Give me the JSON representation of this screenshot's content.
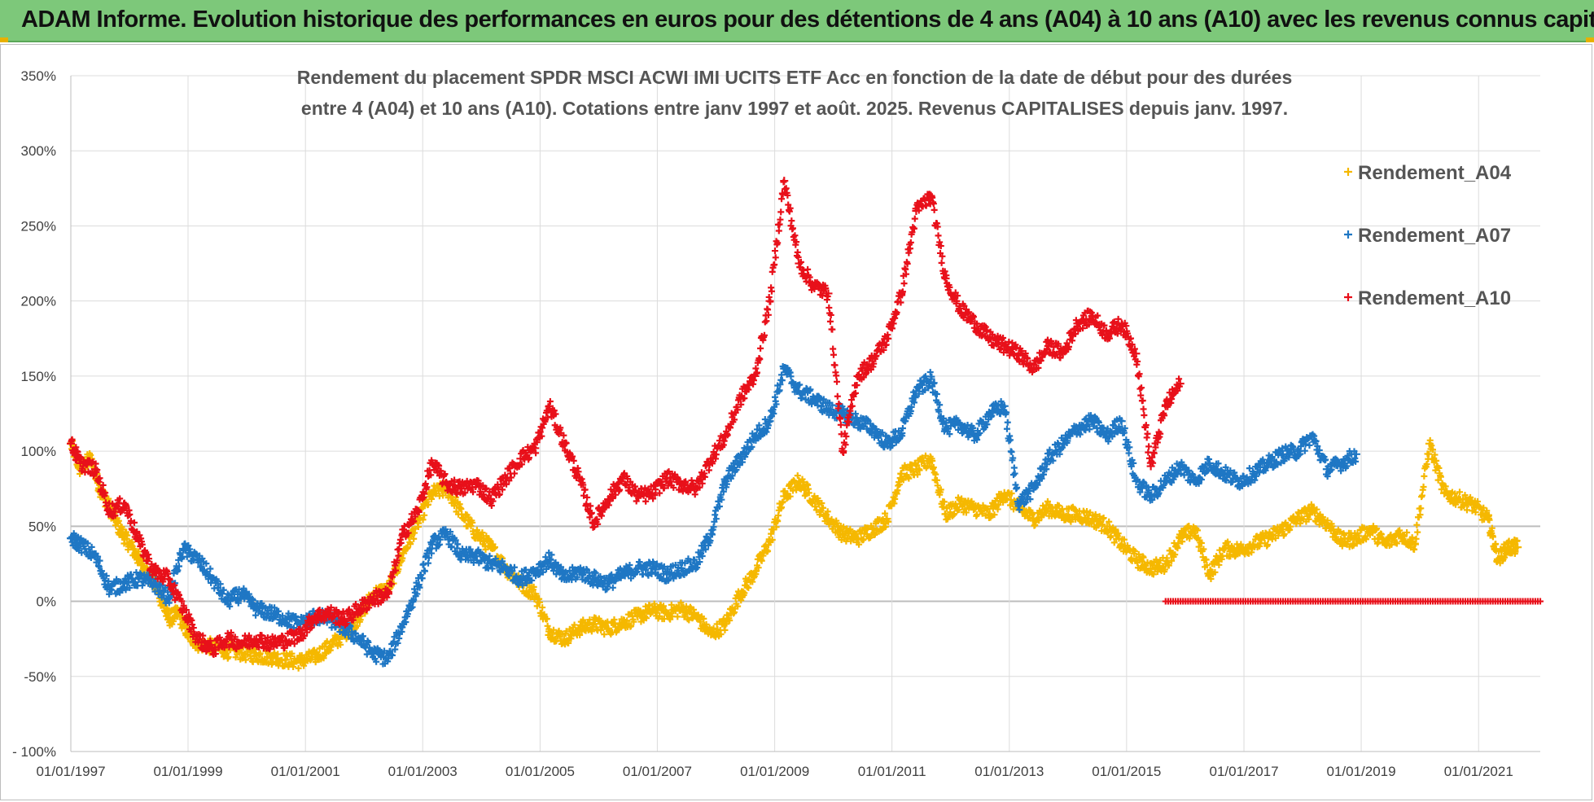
{
  "banner": {
    "title": "ADAM Informe. Evolution historique des performances en euros pour des détentions de 4 ans (A04) à 10 ans (A10) avec les revenus connus capitalisés",
    "background": "#7dc87a"
  },
  "chart_data": {
    "type": "scatter",
    "title_lines": [
      "Rendement du placement SPDR MSCI ACWI IMI UCITS ETF Acc en fonction de la date de début pour des durées",
      "entre 4 (A04) et 10 ans (A10). Cotations entre janv 1997 et août. 2025. Revenus CAPITALISES depuis janv. 1997."
    ],
    "xlabel": "",
    "ylabel": "",
    "xlim": [
      "1997-01-01",
      "2022-01-20"
    ],
    "ylim": [
      -100,
      350
    ],
    "x_ticks": [
      "01/01/1997",
      "01/01/1999",
      "01/01/2001",
      "01/01/2003",
      "01/01/2005",
      "01/01/2007",
      "01/01/2009",
      "01/01/2011",
      "01/01/2013",
      "01/01/2015",
      "01/01/2017",
      "01/01/2019",
      "01/01/2021"
    ],
    "y_ticks": [
      -100,
      -50,
      0,
      50,
      100,
      150,
      200,
      250,
      300,
      350
    ],
    "y_tick_labels": [
      "- 100%",
      "-50%",
      "0%",
      "50%",
      "100%",
      "150%",
      "200%",
      "250%",
      "300%",
      "350%"
    ],
    "grid": true,
    "legend_position": "top-right",
    "marker": "+",
    "series": [
      {
        "name": "Rendement_A04",
        "color": "#f5b800",
        "points": [
          [
            "1997-01-01",
            105
          ],
          [
            "1997-03-01",
            88
          ],
          [
            "1997-05-01",
            95
          ],
          [
            "1997-07-01",
            75
          ],
          [
            "1997-09-01",
            62
          ],
          [
            "1997-11-01",
            48
          ],
          [
            "1998-01-01",
            38
          ],
          [
            "1998-03-01",
            28
          ],
          [
            "1998-05-01",
            18
          ],
          [
            "1998-07-01",
            6
          ],
          [
            "1998-09-01",
            -12
          ],
          [
            "1998-11-01",
            -8
          ],
          [
            "1999-01-01",
            -22
          ],
          [
            "1999-03-01",
            -28
          ],
          [
            "1999-06-01",
            -30
          ],
          [
            "1999-09-01",
            -33
          ],
          [
            "1999-12-01",
            -34
          ],
          [
            "2000-03-01",
            -36
          ],
          [
            "2000-06-01",
            -37
          ],
          [
            "2000-09-01",
            -39
          ],
          [
            "2000-12-01",
            -40
          ],
          [
            "2001-03-01",
            -37
          ],
          [
            "2001-06-01",
            -30
          ],
          [
            "2001-09-01",
            -22
          ],
          [
            "2001-12-01",
            -10
          ],
          [
            "2002-03-01",
            5
          ],
          [
            "2002-06-01",
            8
          ],
          [
            "2002-09-01",
            32
          ],
          [
            "2002-12-01",
            52
          ],
          [
            "2003-03-01",
            72
          ],
          [
            "2003-06-01",
            75
          ],
          [
            "2003-09-01",
            58
          ],
          [
            "2003-12-01",
            45
          ],
          [
            "2004-03-01",
            36
          ],
          [
            "2004-06-01",
            22
          ],
          [
            "2004-09-01",
            12
          ],
          [
            "2004-12-01",
            5
          ],
          [
            "2005-03-01",
            -20
          ],
          [
            "2005-06-01",
            -25
          ],
          [
            "2005-09-01",
            -18
          ],
          [
            "2005-12-01",
            -15
          ],
          [
            "2006-03-01",
            -18
          ],
          [
            "2006-06-01",
            -14
          ],
          [
            "2006-09-01",
            -10
          ],
          [
            "2006-12-01",
            -6
          ],
          [
            "2007-03-01",
            -8
          ],
          [
            "2007-06-01",
            -5
          ],
          [
            "2007-09-01",
            -10
          ],
          [
            "2007-12-01",
            -22
          ],
          [
            "2008-03-01",
            -15
          ],
          [
            "2008-06-01",
            5
          ],
          [
            "2008-09-01",
            20
          ],
          [
            "2008-12-01",
            40
          ],
          [
            "2009-03-01",
            70
          ],
          [
            "2009-06-01",
            80
          ],
          [
            "2009-09-01",
            68
          ],
          [
            "2009-12-01",
            55
          ],
          [
            "2010-03-01",
            45
          ],
          [
            "2010-06-01",
            42
          ],
          [
            "2010-09-01",
            48
          ],
          [
            "2010-12-01",
            55
          ],
          [
            "2011-03-01",
            85
          ],
          [
            "2011-06-01",
            88
          ],
          [
            "2011-09-01",
            95
          ],
          [
            "2011-12-01",
            58
          ],
          [
            "2012-03-01",
            65
          ],
          [
            "2012-06-01",
            62
          ],
          [
            "2012-09-01",
            58
          ],
          [
            "2012-12-01",
            72
          ],
          [
            "2013-03-01",
            62
          ],
          [
            "2013-06-01",
            55
          ],
          [
            "2013-09-01",
            62
          ],
          [
            "2013-12-01",
            58
          ],
          [
            "2014-03-01",
            58
          ],
          [
            "2014-06-01",
            55
          ],
          [
            "2014-09-01",
            50
          ],
          [
            "2014-12-01",
            38
          ],
          [
            "2015-03-01",
            28
          ],
          [
            "2015-06-01",
            22
          ],
          [
            "2015-09-01",
            25
          ],
          [
            "2015-12-01",
            42
          ],
          [
            "2016-03-01",
            48
          ],
          [
            "2016-06-01",
            18
          ],
          [
            "2016-09-01",
            35
          ],
          [
            "2016-12-01",
            34
          ],
          [
            "2017-03-01",
            38
          ],
          [
            "2017-06-01",
            42
          ],
          [
            "2017-09-01",
            48
          ],
          [
            "2017-12-01",
            55
          ],
          [
            "2018-03-01",
            60
          ],
          [
            "2018-06-01",
            52
          ],
          [
            "2018-09-01",
            40
          ],
          [
            "2018-12-01",
            42
          ],
          [
            "2019-03-01",
            48
          ],
          [
            "2019-06-01",
            38
          ],
          [
            "2019-09-01",
            45
          ],
          [
            "2019-12-01",
            38
          ],
          [
            "2020-03-01",
            105
          ],
          [
            "2020-06-01",
            72
          ],
          [
            "2020-09-01",
            68
          ],
          [
            "2020-12-01",
            64
          ],
          [
            "2021-03-01",
            55
          ],
          [
            "2021-05-01",
            28
          ],
          [
            "2021-07-01",
            36
          ],
          [
            "2021-09-01",
            36
          ]
        ]
      },
      {
        "name": "Rendement_A07",
        "color": "#1f77c4",
        "points": [
          [
            "1997-01-01",
            42
          ],
          [
            "1997-03-01",
            38
          ],
          [
            "1997-06-01",
            30
          ],
          [
            "1997-09-01",
            8
          ],
          [
            "1997-12-01",
            12
          ],
          [
            "1998-03-01",
            15
          ],
          [
            "1998-06-01",
            12
          ],
          [
            "1998-09-01",
            2
          ],
          [
            "1998-12-01",
            35
          ],
          [
            "1999-03-01",
            28
          ],
          [
            "1999-06-01",
            15
          ],
          [
            "1999-09-01",
            0
          ],
          [
            "1999-12-01",
            5
          ],
          [
            "2000-03-01",
            -5
          ],
          [
            "2000-06-01",
            -8
          ],
          [
            "2000-09-01",
            -12
          ],
          [
            "2000-12-01",
            -15
          ],
          [
            "2001-03-01",
            -10
          ],
          [
            "2001-06-01",
            -12
          ],
          [
            "2001-09-01",
            -18
          ],
          [
            "2001-12-01",
            -25
          ],
          [
            "2002-03-01",
            -35
          ],
          [
            "2002-06-01",
            -38
          ],
          [
            "2002-09-01",
            -15
          ],
          [
            "2002-12-01",
            10
          ],
          [
            "2003-03-01",
            38
          ],
          [
            "2003-06-01",
            45
          ],
          [
            "2003-09-01",
            30
          ],
          [
            "2003-12-01",
            30
          ],
          [
            "2004-03-01",
            25
          ],
          [
            "2004-06-01",
            22
          ],
          [
            "2004-09-01",
            15
          ],
          [
            "2004-12-01",
            20
          ],
          [
            "2005-03-01",
            28
          ],
          [
            "2005-06-01",
            15
          ],
          [
            "2005-09-01",
            20
          ],
          [
            "2005-12-01",
            15
          ],
          [
            "2006-03-01",
            12
          ],
          [
            "2006-06-01",
            18
          ],
          [
            "2006-09-01",
            22
          ],
          [
            "2006-12-01",
            22
          ],
          [
            "2007-03-01",
            18
          ],
          [
            "2007-06-01",
            22
          ],
          [
            "2007-09-01",
            25
          ],
          [
            "2007-12-01",
            45
          ],
          [
            "2008-03-01",
            80
          ],
          [
            "2008-06-01",
            95
          ],
          [
            "2008-09-01",
            110
          ],
          [
            "2008-12-01",
            120
          ],
          [
            "2009-03-01",
            155
          ],
          [
            "2009-06-01",
            140
          ],
          [
            "2009-09-01",
            135
          ],
          [
            "2009-12-01",
            128
          ],
          [
            "2010-03-01",
            125
          ],
          [
            "2010-06-01",
            120
          ],
          [
            "2010-09-01",
            115
          ],
          [
            "2010-12-01",
            105
          ],
          [
            "2011-03-01",
            112
          ],
          [
            "2011-06-01",
            140
          ],
          [
            "2011-09-01",
            148
          ],
          [
            "2011-12-01",
            115
          ],
          [
            "2012-03-01",
            118
          ],
          [
            "2012-06-01",
            110
          ],
          [
            "2012-09-01",
            125
          ],
          [
            "2012-12-01",
            130
          ],
          [
            "2013-03-01",
            65
          ],
          [
            "2013-06-01",
            75
          ],
          [
            "2013-09-01",
            95
          ],
          [
            "2013-12-01",
            105
          ],
          [
            "2014-03-01",
            115
          ],
          [
            "2014-06-01",
            120
          ],
          [
            "2014-09-01",
            110
          ],
          [
            "2014-12-01",
            120
          ],
          [
            "2015-03-01",
            80
          ],
          [
            "2015-06-01",
            70
          ],
          [
            "2015-09-01",
            80
          ],
          [
            "2015-12-01",
            90
          ],
          [
            "2016-03-01",
            80
          ],
          [
            "2016-06-01",
            92
          ],
          [
            "2016-09-01",
            85
          ],
          [
            "2016-12-01",
            80
          ],
          [
            "2017-03-01",
            85
          ],
          [
            "2017-06-01",
            92
          ],
          [
            "2017-09-01",
            98
          ],
          [
            "2017-12-01",
            100
          ],
          [
            "2018-03-01",
            110
          ],
          [
            "2018-06-01",
            88
          ],
          [
            "2018-09-01",
            92
          ],
          [
            "2018-12-01",
            98
          ]
        ]
      },
      {
        "name": "Rendement_A10",
        "color": "#e8101a",
        "points": [
          [
            "1997-01-01",
            105
          ],
          [
            "1997-03-01",
            92
          ],
          [
            "1997-06-01",
            88
          ],
          [
            "1997-09-01",
            60
          ],
          [
            "1997-12-01",
            65
          ],
          [
            "1998-03-01",
            40
          ],
          [
            "1998-06-01",
            20
          ],
          [
            "1998-09-01",
            15
          ],
          [
            "1998-12-01",
            -5
          ],
          [
            "1999-03-01",
            -25
          ],
          [
            "1999-06-01",
            -32
          ],
          [
            "1999-09-01",
            -25
          ],
          [
            "1999-12-01",
            -28
          ],
          [
            "2000-03-01",
            -25
          ],
          [
            "2000-06-01",
            -28
          ],
          [
            "2000-09-01",
            -26
          ],
          [
            "2000-12-01",
            -22
          ],
          [
            "2001-03-01",
            -10
          ],
          [
            "2001-06-01",
            -8
          ],
          [
            "2001-09-01",
            -12
          ],
          [
            "2001-12-01",
            -5
          ],
          [
            "2002-03-01",
            2
          ],
          [
            "2002-06-01",
            5
          ],
          [
            "2002-09-01",
            45
          ],
          [
            "2002-12-01",
            60
          ],
          [
            "2003-03-01",
            92
          ],
          [
            "2003-06-01",
            78
          ],
          [
            "2003-09-01",
            75
          ],
          [
            "2003-12-01",
            78
          ],
          [
            "2004-03-01",
            68
          ],
          [
            "2004-06-01",
            82
          ],
          [
            "2004-09-01",
            95
          ],
          [
            "2004-12-01",
            102
          ],
          [
            "2005-03-01",
            130
          ],
          [
            "2005-06-01",
            105
          ],
          [
            "2005-09-01",
            82
          ],
          [
            "2005-12-01",
            52
          ],
          [
            "2006-03-01",
            68
          ],
          [
            "2006-06-01",
            82
          ],
          [
            "2006-09-01",
            70
          ],
          [
            "2006-12-01",
            72
          ],
          [
            "2007-03-01",
            82
          ],
          [
            "2007-06-01",
            78
          ],
          [
            "2007-09-01",
            75
          ],
          [
            "2007-12-01",
            95
          ],
          [
            "2008-03-01",
            110
          ],
          [
            "2008-06-01",
            135
          ],
          [
            "2008-09-01",
            150
          ],
          [
            "2008-12-01",
            200
          ],
          [
            "2009-03-01",
            280
          ],
          [
            "2009-06-01",
            225
          ],
          [
            "2009-09-01",
            210
          ],
          [
            "2009-12-01",
            205
          ],
          [
            "2010-03-01",
            100
          ],
          [
            "2010-06-01",
            150
          ],
          [
            "2010-09-01",
            160
          ],
          [
            "2010-12-01",
            175
          ],
          [
            "2011-03-01",
            205
          ],
          [
            "2011-06-01",
            260
          ],
          [
            "2011-09-01",
            270
          ],
          [
            "2011-12-01",
            215
          ],
          [
            "2012-03-01",
            195
          ],
          [
            "2012-06-01",
            185
          ],
          [
            "2012-09-01",
            175
          ],
          [
            "2012-12-01",
            170
          ],
          [
            "2013-03-01",
            165
          ],
          [
            "2013-06-01",
            155
          ],
          [
            "2013-09-01",
            170
          ],
          [
            "2013-12-01",
            165
          ],
          [
            "2014-03-01",
            185
          ],
          [
            "2014-06-01",
            190
          ],
          [
            "2014-09-01",
            178
          ],
          [
            "2014-12-01",
            185
          ],
          [
            "2015-03-01",
            165
          ],
          [
            "2015-06-01",
            90
          ],
          [
            "2015-09-01",
            130
          ],
          [
            "2015-12-01",
            145
          ]
        ],
        "flat_zero_range": [
          "2015-09-01",
          "2022-01-20"
        ]
      }
    ]
  }
}
